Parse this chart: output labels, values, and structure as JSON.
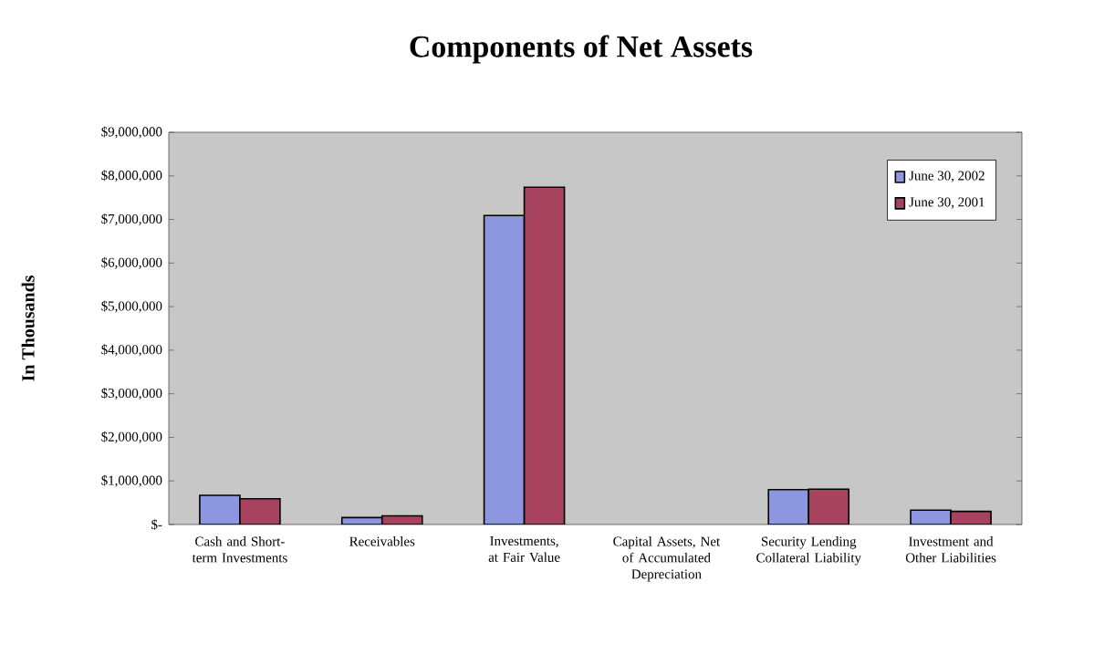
{
  "chart_data": {
    "type": "bar",
    "title": "Components of Net Assets",
    "ylabel": "In Thousands",
    "categories": [
      "Cash and Short-term Investments",
      "Receivables",
      "Investments, at Fair Value",
      "Capital Assets, Net of Accumulated Depreciation",
      "Security Lending Collateral Liability",
      "Investment and Other Liabilities"
    ],
    "series": [
      {
        "name": "June 30, 2002",
        "color": "#8c97e0",
        "values": [
          670000,
          160000,
          7090000,
          null,
          800000,
          330000
        ]
      },
      {
        "name": "June 30, 2001",
        "color": "#a8435f",
        "values": [
          590000,
          200000,
          7740000,
          null,
          810000,
          300000
        ]
      }
    ],
    "ylim": [
      0,
      9000000
    ],
    "yticks": [
      {
        "value": 0,
        "label": "$-"
      },
      {
        "value": 1000000,
        "label": "$1,000,000"
      },
      {
        "value": 2000000,
        "label": "$2,000,000"
      },
      {
        "value": 3000000,
        "label": "$3,000,000"
      },
      {
        "value": 4000000,
        "label": "$4,000,000"
      },
      {
        "value": 5000000,
        "label": "$5,000,000"
      },
      {
        "value": 6000000,
        "label": "$6,000,000"
      },
      {
        "value": 7000000,
        "label": "$7,000,000"
      },
      {
        "value": 8000000,
        "label": "$8,000,000"
      },
      {
        "value": 9000000,
        "label": "$9,000,000"
      }
    ],
    "legend": "top right"
  }
}
